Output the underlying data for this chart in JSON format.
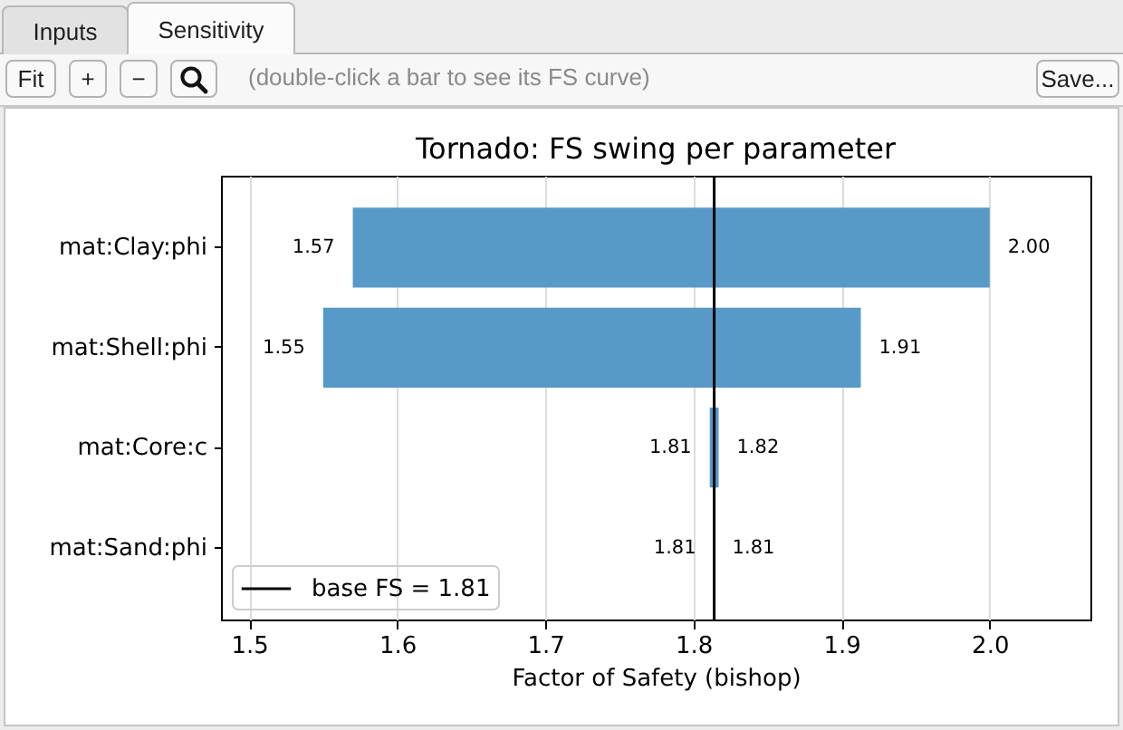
{
  "chart_data": {
    "type": "bar",
    "orientation": "horizontal",
    "title": "Tornado: FS swing per parameter",
    "xlabel": "Factor of Safety (bishop)",
    "categories": [
      "mat:Clay:phi",
      "mat:Shell:phi",
      "mat:Core:c",
      "mat:Sand:phi"
    ],
    "base": [
      1.57,
      1.55,
      1.811,
      null
    ],
    "values": [
      0.43,
      0.363,
      0.006,
      null
    ],
    "color": "#5799c7",
    "xlim": [
      1.481,
      2.068
    ],
    "xticks": [
      1.5,
      1.6,
      1.7,
      1.8,
      1.9,
      {
        "value": 2,
        "label": "2.0"
      }
    ],
    "grid": "x",
    "legend": "bottom left",
    "ref_lines": [
      {
        "axis": "x",
        "value": 1.814,
        "label": "base FS = 1.81",
        "color": "#000000"
      }
    ],
    "annotations": [
      "Inputs",
      "Sensitivity",
      "Fit",
      "+",
      "−",
      "(double-click a bar to see its FS curve)",
      "Save...",
      {
        "text": "1.57",
        "x": 1.57,
        "y": "mat:Clay:phi"
      },
      {
        "text": "2.00",
        "x": 2.0,
        "y": "mat:Clay:phi"
      },
      {
        "text": "1.55",
        "x": 1.55,
        "y": "mat:Shell:phi"
      },
      {
        "text": "1.91",
        "x": 1.913,
        "y": "mat:Shell:phi"
      },
      {
        "text": "1.81",
        "x": 1.811,
        "y": "mat:Core:c"
      },
      {
        "text": "1.82",
        "x": 1.817,
        "y": "mat:Core:c"
      },
      {
        "text": "1.81",
        "x": 1.814,
        "y": "mat:Sand:phi"
      },
      {
        "text": "1.81",
        "x": 1.814,
        "y": "mat:Sand:phi"
      }
    ]
  }
}
